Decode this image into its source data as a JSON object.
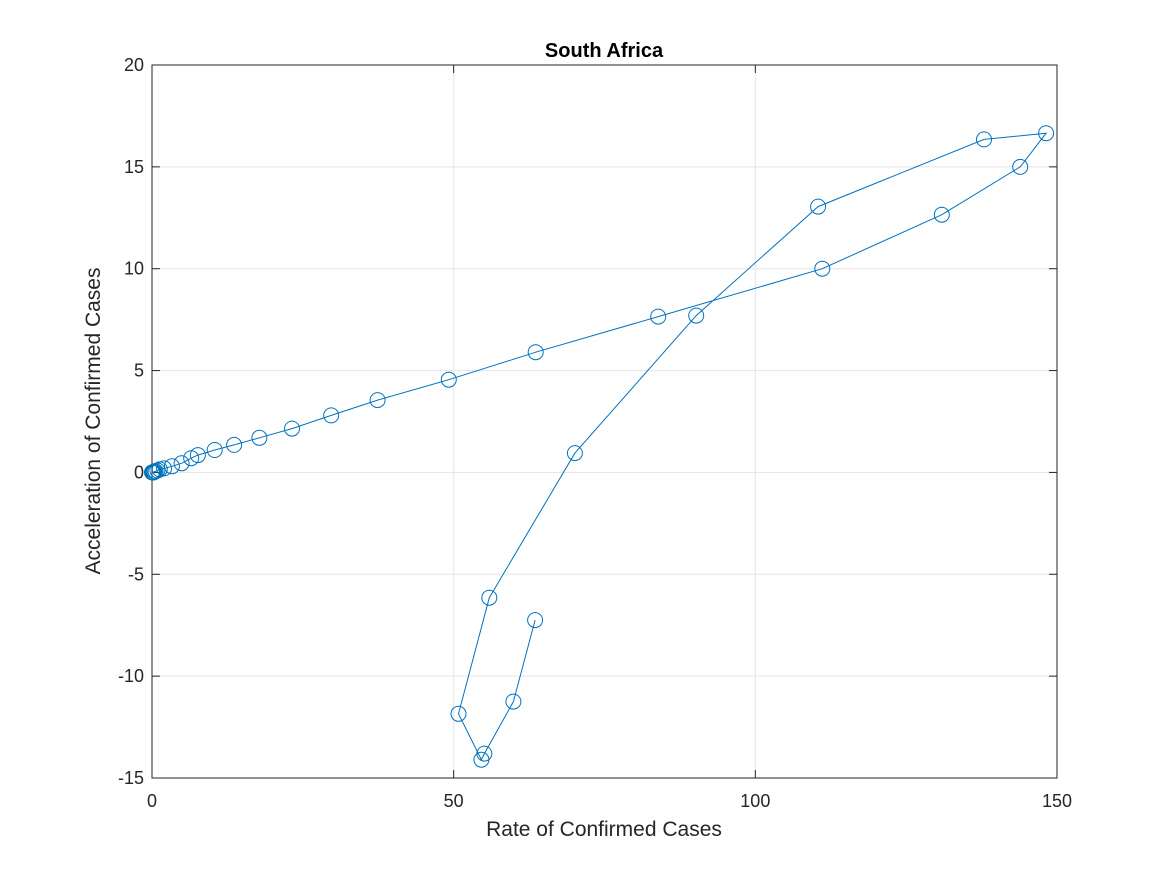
{
  "chart_data": {
    "type": "line",
    "title": "South Africa",
    "xlabel": "Rate of Confirmed Cases",
    "ylabel": "Acceleration of Confirmed Cases",
    "xlim": [
      0,
      150
    ],
    "ylim": [
      -15,
      20
    ],
    "xticks": [
      0,
      50,
      100,
      150
    ],
    "yticks": [
      -15,
      -10,
      -5,
      0,
      5,
      10,
      15,
      20
    ],
    "grid": true,
    "legend": "none",
    "marker": "circle",
    "series": [
      {
        "color": "#0072bd",
        "points": [
          [
            0,
            0
          ],
          [
            0.1,
            0
          ],
          [
            0.2,
            0
          ],
          [
            0.3,
            0
          ],
          [
            0.4,
            0.05
          ],
          [
            0.6,
            0.05
          ],
          [
            0.9,
            0.1
          ],
          [
            1.3,
            0.15
          ],
          [
            2.0,
            0.2
          ],
          [
            3.3,
            0.3
          ],
          [
            4.9,
            0.45
          ],
          [
            6.5,
            0.7
          ],
          [
            7.6,
            0.85
          ],
          [
            10.4,
            1.1
          ],
          [
            13.6,
            1.35
          ],
          [
            17.8,
            1.7
          ],
          [
            23.2,
            2.15
          ],
          [
            29.7,
            2.8
          ],
          [
            37.4,
            3.55
          ],
          [
            49.2,
            4.55
          ],
          [
            63.6,
            5.9
          ],
          [
            83.9,
            7.65
          ],
          [
            111.1,
            10.0
          ],
          [
            130.9,
            12.65
          ],
          [
            143.9,
            15.0
          ],
          [
            148.2,
            16.65
          ],
          [
            137.9,
            16.35
          ],
          [
            110.4,
            13.05
          ],
          [
            90.2,
            7.7
          ],
          [
            70.1,
            0.95
          ],
          [
            55.9,
            -6.15
          ],
          [
            50.8,
            -11.85
          ],
          [
            54.6,
            -14.1
          ],
          [
            55.1,
            -13.8
          ],
          [
            59.9,
            -11.25
          ],
          [
            63.5,
            -7.25
          ]
        ]
      }
    ]
  }
}
